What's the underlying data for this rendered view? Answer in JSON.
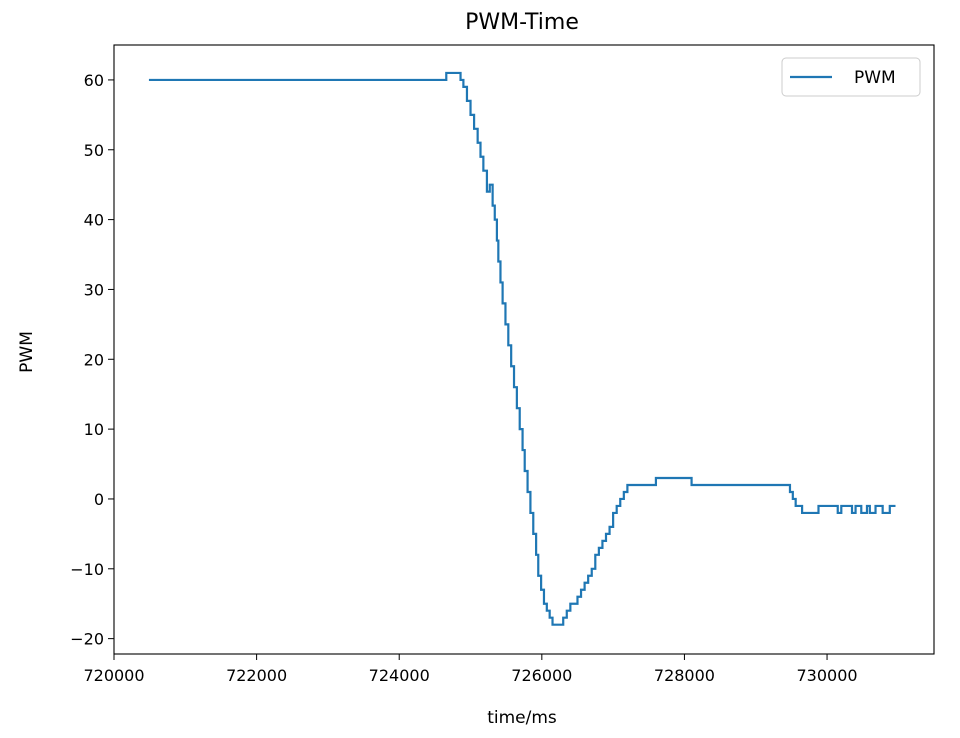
{
  "chart_data": {
    "type": "line",
    "title": "PWM-Time",
    "xlabel": "time/ms",
    "ylabel": "PWM",
    "xlim": [
      720000,
      731500
    ],
    "ylim": [
      -22.2,
      65
    ],
    "xticks": [
      720000,
      722000,
      724000,
      726000,
      728000,
      730000
    ],
    "yticks": [
      -20,
      -10,
      0,
      10,
      20,
      30,
      40,
      50,
      60
    ],
    "xtick_labels": [
      "720000",
      "722000",
      "724000",
      "726000",
      "728000",
      "730000"
    ],
    "ytick_labels": [
      "−20",
      "−10",
      "0",
      "10",
      "20",
      "30",
      "40",
      "50",
      "60"
    ],
    "legend": {
      "position": "top-right",
      "entries": [
        "PWM"
      ]
    },
    "grid": false,
    "color": "#1f77b4",
    "series": [
      {
        "name": "PWM",
        "x": [
          720490,
          724660,
          724660,
          724860,
          724860,
          724900,
          724900,
          724950,
          724950,
          725000,
          725000,
          725050,
          725050,
          725100,
          725100,
          725140,
          725140,
          725180,
          725180,
          725230,
          725230,
          725270,
          725270,
          725310,
          725310,
          725340,
          725340,
          725370,
          725370,
          725390,
          725390,
          725420,
          725420,
          725450,
          725450,
          725490,
          725490,
          725530,
          725530,
          725570,
          725570,
          725610,
          725610,
          725650,
          725650,
          725690,
          725690,
          725730,
          725730,
          725760,
          725760,
          725800,
          725800,
          725840,
          725840,
          725880,
          725880,
          725920,
          725920,
          725950,
          725950,
          725990,
          725990,
          726030,
          726030,
          726070,
          726070,
          726110,
          726110,
          726150,
          726150,
          726300,
          726300,
          726350,
          726350,
          726400,
          726400,
          726500,
          726500,
          726550,
          726550,
          726600,
          726600,
          726650,
          726650,
          726700,
          726700,
          726750,
          726750,
          726800,
          726800,
          726850,
          726850,
          726900,
          726900,
          726950,
          726950,
          727000,
          727000,
          727050,
          727050,
          727100,
          727100,
          727150,
          727150,
          727200,
          727200,
          727600,
          727600,
          728100,
          728100,
          729480,
          729480,
          729520,
          729520,
          729560,
          729560,
          729650,
          729650,
          729880,
          729880,
          730150,
          730150,
          730200,
          730200,
          730350,
          730350,
          730400,
          730400,
          730480,
          730480,
          730560,
          730560,
          730600,
          730600,
          730680,
          730680,
          730780,
          730780,
          730880,
          730880,
          730960
        ],
        "y": [
          60,
          60,
          61,
          61,
          60,
          60,
          59,
          59,
          57,
          57,
          55,
          55,
          53,
          53,
          51,
          51,
          49,
          49,
          47,
          47,
          44,
          44,
          45,
          45,
          42,
          42,
          40,
          40,
          37,
          37,
          34,
          34,
          31,
          31,
          28,
          28,
          25,
          25,
          22,
          22,
          19,
          19,
          16,
          16,
          13,
          13,
          10,
          10,
          7,
          7,
          4,
          4,
          1,
          1,
          -2,
          -2,
          -5,
          -5,
          -8,
          -8,
          -11,
          -11,
          -13,
          -13,
          -15,
          -15,
          -16,
          -16,
          -17,
          -17,
          -18,
          -18,
          -17,
          -17,
          -16,
          -16,
          -15,
          -15,
          -14,
          -14,
          -13,
          -13,
          -12,
          -12,
          -11,
          -11,
          -10,
          -10,
          -8,
          -8,
          -7,
          -7,
          -6,
          -6,
          -5,
          -5,
          -4,
          -4,
          -2,
          -2,
          -1,
          -1,
          0,
          0,
          1,
          1,
          2,
          2,
          3,
          3,
          2,
          2,
          1,
          1,
          0,
          0,
          -1,
          -1,
          -2,
          -2,
          -1,
          -1,
          -2,
          -2,
          -1,
          -1,
          -2,
          -2,
          -1,
          -1,
          -2,
          -2,
          -1,
          -1,
          -2,
          -2,
          -1,
          -1,
          -2,
          -2,
          -1,
          -1
        ]
      }
    ]
  }
}
